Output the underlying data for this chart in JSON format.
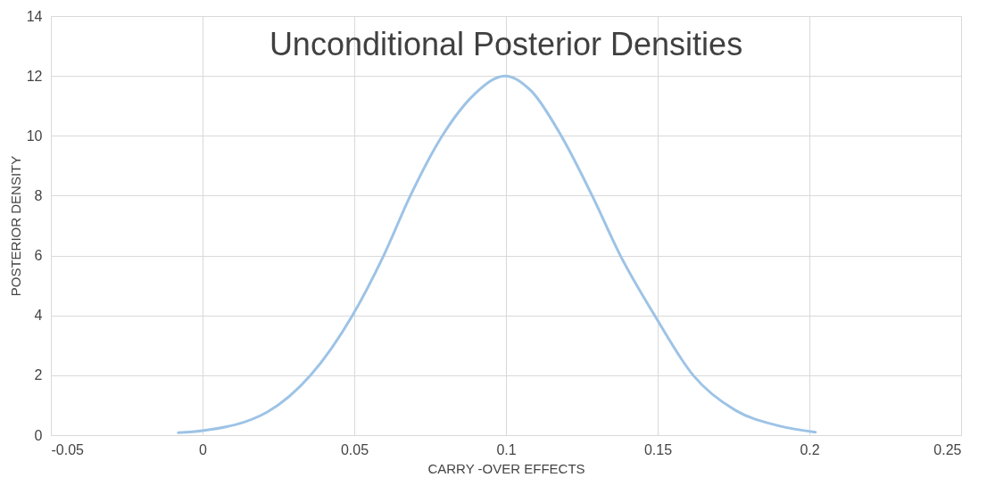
{
  "chart_data": {
    "type": "line",
    "title": "Unconditional Posterior Densities",
    "xlabel": "CARRY -OVER EFFECTS",
    "ylabel": "POSTERIOR DENSITY",
    "xlim": [
      -0.05,
      0.25
    ],
    "xticks": [
      -0.05,
      0,
      0.05,
      0.1,
      0.15,
      0.2,
      0.25
    ],
    "ylim": [
      0,
      14
    ],
    "yticks": [
      0,
      2,
      4,
      6,
      8,
      10,
      12,
      14
    ],
    "grid": true,
    "marker": "none",
    "line_style": "solid",
    "series": [
      {
        "color": "#9dc3e6",
        "x": [
          -0.008,
          0,
          0.0215,
          0.0356,
          0.0494,
          0.0597,
          0.0685,
          0.079,
          0.0897,
          0.0997,
          0.1083,
          0.1182,
          0.1284,
          0.1377,
          0.149,
          0.1617,
          0.1756,
          0.19,
          0.202
        ],
        "values": [
          0.08,
          0.15,
          0.78,
          2,
          4,
          6,
          8,
          10,
          11.4,
          12,
          11.5,
          10,
          8,
          6,
          4,
          2,
          0.83,
          0.31,
          0.1
        ]
      }
    ]
  }
}
